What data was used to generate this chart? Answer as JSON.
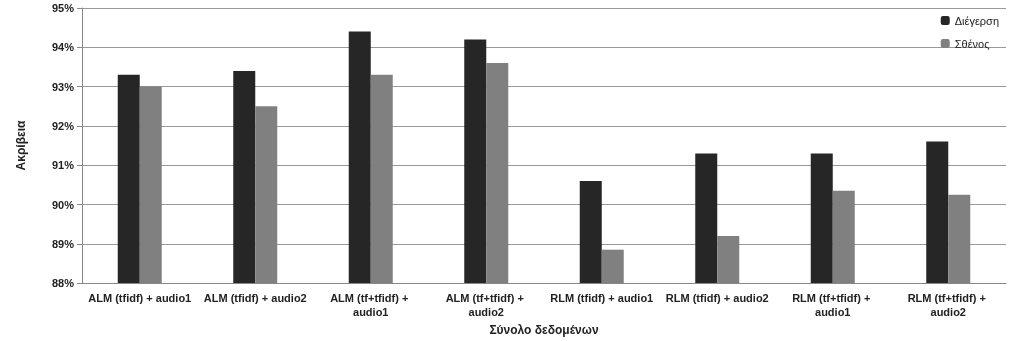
{
  "chart_data": {
    "type": "bar",
    "xlabel": "Σύνολο δεδομένων",
    "ylabel": "Ακρίβεια",
    "categories": [
      "ALM (tfidf) + audio1",
      "ALM (tfidf) + audio2",
      "ALM (tf+tfidf) + audio1",
      "ALM (tf+tfidf) + audio2",
      "RLM (tfidf) + audio1",
      "RLM (tfidf) + audio2",
      "RLM (tf+tfidf) + audio1",
      "RLM (tf+tfidf) + audio2"
    ],
    "series": [
      {
        "name": "Διέγερση",
        "color": "#262626",
        "values": [
          93.3,
          93.4,
          94.4,
          94.2,
          90.6,
          91.3,
          91.3,
          91.6
        ]
      },
      {
        "name": "Σθένος",
        "color": "#808080",
        "values": [
          93.0,
          92.5,
          93.3,
          93.6,
          88.85,
          89.2,
          90.35,
          90.25
        ]
      }
    ],
    "ylim": [
      88,
      95
    ],
    "yticks": [
      {
        "value": 88,
        "label": "88%"
      },
      {
        "value": 89,
        "label": "89%"
      },
      {
        "value": 90,
        "label": "90%"
      },
      {
        "value": 91,
        "label": "91%"
      },
      {
        "value": 92,
        "label": "92%"
      },
      {
        "value": 93,
        "label": "93%"
      },
      {
        "value": 94,
        "label": "94%"
      },
      {
        "value": 95,
        "label": "95%"
      }
    ],
    "grid": "y",
    "legend": "top right"
  }
}
